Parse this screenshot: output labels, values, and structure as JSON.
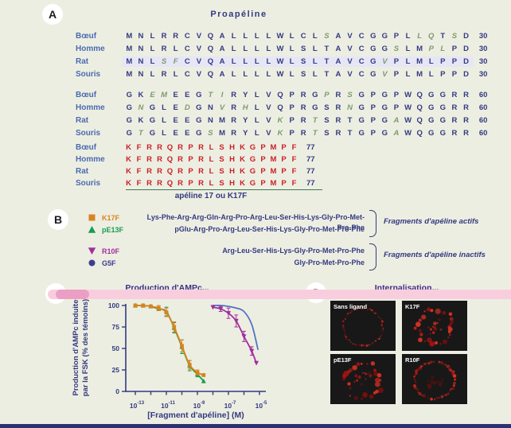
{
  "panelA": {
    "label": "A",
    "title": "Proapéline",
    "blocks": [
      {
        "rows": [
          {
            "species": "Bœuf",
            "seq": "MNLRRCVQALLLLWLCLsAVCGGPLlqTsD",
            "num": "30",
            "highlight": false
          },
          {
            "species": "Homme",
            "seq": "MNLRLCVQALLLLWLSLTAVCGGsLMplPD",
            "num": "30",
            "highlight": false
          },
          {
            "species": "Rat",
            "seq": "MNLsfCVQALLLLWLSLTAVCGvPLMLPPD",
            "num": "30",
            "highlight": true
          },
          {
            "species": "Souris",
            "seq": "MNLRLCVQALLLLWLSLTAVCGvPLMLPPD",
            "num": "30",
            "highlight": false
          }
        ]
      },
      {
        "rows": [
          {
            "species": "Bœuf",
            "seq": "GKemEEGtiRYLVQPRGpRsGPGPWQGGRR",
            "num": "60",
            "highlight": false
          },
          {
            "species": "Homme",
            "seq": "GnGLEdGNvRhLVQPRGSRnGPGPWQGGRR",
            "num": "60",
            "highlight": false
          },
          {
            "species": "Rat",
            "seq": "GKGLEEGNMRYLVkPRtSRTGPGaWQGGRR",
            "num": "60",
            "highlight": false
          },
          {
            "species": "Souris",
            "seq": "GtGLEEGsMRYLVkPRtSRTGPGaWQGGRR",
            "num": "60",
            "highlight": false
          }
        ]
      },
      {
        "red": true,
        "rows": [
          {
            "species": "Bœuf",
            "seq": "KFRRQRPRLSHKGPMPF",
            "num": "77",
            "highlight": false
          },
          {
            "species": "Homme",
            "seq": "KFRRQRPRLSHKGPMPF",
            "num": "77",
            "highlight": false
          },
          {
            "species": "Rat",
            "seq": "KFRRQRPRLSHKGPMPF",
            "num": "77",
            "highlight": false
          },
          {
            "species": "Souris",
            "seq": "KFRRQRPRLSHKGPMPF",
            "num": "77",
            "highlight": false
          }
        ]
      }
    ],
    "caption": "apéline 17 ou K17F"
  },
  "panelB": {
    "label": "B",
    "fragments": [
      {
        "name": "K17F",
        "marker": "square",
        "color": "#d9831f",
        "sequence": "Lys-Phe-Arg-Arg-Gln-Arg-Pro-Arg-Leu-Ser-His-Lys-Gly-Pro-Met-Pro-Phe",
        "group": "active"
      },
      {
        "name": "pE13F",
        "marker": "triangle-up",
        "color": "#169e50",
        "sequence": "pGlu-Arg-Pro-Arg-Leu-Ser-His-Lys-Gly-Pro-Met-Pro-Phe",
        "group": "active"
      },
      {
        "name": "R10F",
        "marker": "triangle-down",
        "color": "#a02f9c",
        "sequence": "Arg-Leu-Ser-His-Lys-Gly-Pro-Met-Pro-Phe",
        "group": "inactive"
      },
      {
        "name": "G5F",
        "marker": "circle",
        "color": "#3d3d8f",
        "sequence": "Gly-Pro-Met-Pro-Phe",
        "group": "inactive"
      }
    ],
    "groups": {
      "active": "Fragments d'apéline actifs",
      "inactive": "Fragments d'apéline inactifs"
    }
  },
  "panelC": {
    "label": "C"
  },
  "panelD": {
    "label": "D",
    "title": "Internalisation...",
    "images": [
      {
        "label": "Sans ligand",
        "pattern": "membrane-thin"
      },
      {
        "label": "K17F",
        "pattern": "internalized"
      },
      {
        "label": "pE13F",
        "pattern": "internalized"
      },
      {
        "label": "R10F",
        "pattern": "membrane-thick"
      }
    ]
  },
  "chart_data": {
    "type": "line",
    "title": "Production d'AMPc...",
    "xlabel": "[Fragment d'apéline] (M)",
    "ylabel_lines": [
      "Production d'AMPc induite",
      "par la FSK (% des témoins)"
    ],
    "x_scale": "log10",
    "xlim_log10": [
      -13.3,
      -4.7
    ],
    "ylim": [
      0,
      100
    ],
    "y_ticks": [
      0,
      25,
      50,
      75,
      100
    ],
    "x_ticks": [
      {
        "base": "10",
        "exp": "-13"
      },
      {
        "base": "10",
        "exp": "-11"
      },
      {
        "base": "10",
        "exp": "-9"
      },
      {
        "base": "10",
        "exp": "-7"
      },
      {
        "base": "10",
        "exp": "-5"
      }
    ],
    "x_tick_decades": [
      -13,
      -11,
      -9,
      -7,
      -5
    ],
    "x_minor_decades": [
      -12,
      -10,
      -8,
      -6
    ],
    "grid": false,
    "legend_position": "none",
    "series": [
      {
        "name": "pE13F",
        "color": "#15a050",
        "marker": "triangle-up",
        "log10_x": [
          -13,
          -12.5,
          -12,
          -11.5,
          -11,
          -10.5,
          -10,
          -9.5,
          -9,
          -8.6
        ],
        "y": [
          100,
          100,
          99,
          96,
          93,
          74,
          52,
          30,
          20,
          12
        ],
        "err": [
          0,
          0,
          0,
          0,
          5,
          6,
          8,
          6,
          3,
          0
        ]
      },
      {
        "name": "K17F",
        "color": "#d9831f",
        "marker": "square",
        "log10_x": [
          -13,
          -12.5,
          -12,
          -11.5,
          -11,
          -10.5,
          -10,
          -9.5,
          -9,
          -8.6
        ],
        "y": [
          100,
          100,
          99,
          97,
          92,
          75,
          53,
          31,
          22,
          19
        ],
        "err": [
          0,
          0,
          0,
          3,
          5,
          6,
          7,
          5,
          3,
          0
        ]
      },
      {
        "name": "G5F",
        "color": "#5273c3",
        "marker": "none",
        "log10_x": [
          -8,
          -7.5,
          -7,
          -6.5,
          -6,
          -5.5,
          -5.1
        ],
        "y": [
          100,
          100,
          99,
          97,
          93,
          78,
          49
        ],
        "err": [
          0,
          0,
          0,
          0,
          0,
          0,
          0
        ]
      },
      {
        "name": "R10F",
        "color": "#a02f9c",
        "marker": "triangle-down",
        "log10_x": [
          -8,
          -7.5,
          -7,
          -6.5,
          -6,
          -5.5,
          -5.2
        ],
        "y": [
          98,
          96,
          91,
          82,
          64,
          47,
          33
        ],
        "err": [
          0,
          3,
          6,
          7,
          6,
          5,
          0
        ]
      }
    ]
  }
}
